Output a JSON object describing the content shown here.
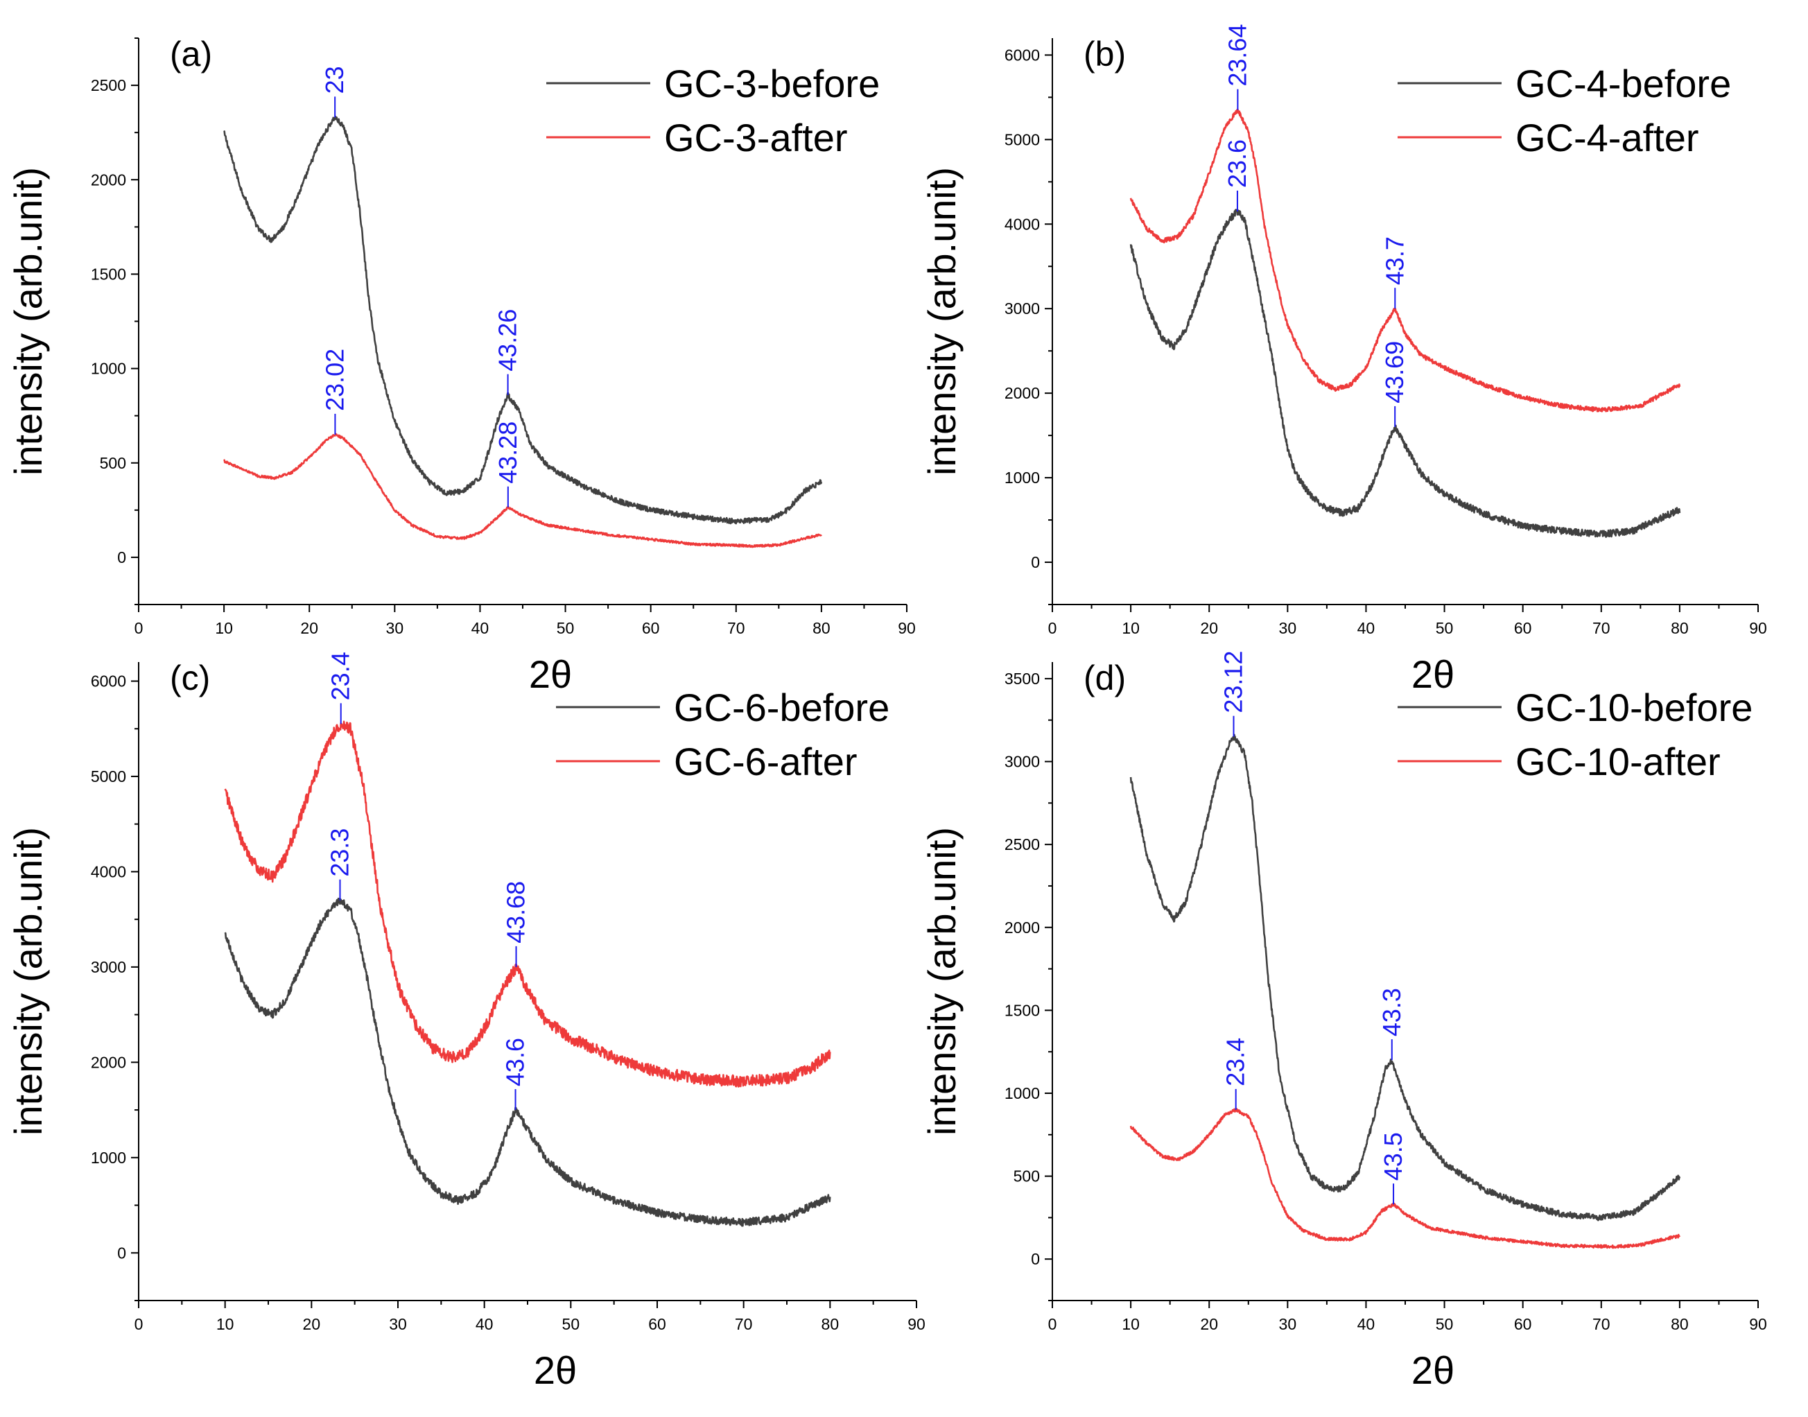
{
  "figure": {
    "line_colors": {
      "before": "#404040",
      "after": "#ee3a3a"
    },
    "annotation_color": "#1a1aee"
  },
  "chart_data": [
    {
      "type": "line",
      "panel_label": "(a)",
      "xlabel": "2θ",
      "ylabel": "intensity (arb.unit)",
      "xlim": [
        0,
        90
      ],
      "ylim": [
        -250,
        2750
      ],
      "xticks": [
        0,
        10,
        20,
        30,
        40,
        50,
        60,
        70,
        80,
        90
      ],
      "yticks": [
        0,
        500,
        1000,
        1500,
        2000,
        2500
      ],
      "legend": {
        "position": "top-right"
      },
      "series": [
        {
          "name": "GC-3-before",
          "color": "#404040",
          "noise": 14,
          "x": [
            10,
            12,
            14,
            15.5,
            17,
            19,
            21,
            22.5,
            23,
            24,
            25,
            26,
            27,
            28,
            30,
            32,
            34,
            36,
            38,
            40,
            41,
            42,
            43.26,
            44.5,
            46,
            48,
            52,
            56,
            60,
            65,
            70,
            74,
            76,
            78,
            80
          ],
          "y": [
            2250,
            1950,
            1740,
            1680,
            1750,
            1950,
            2180,
            2300,
            2330,
            2280,
            2150,
            1800,
            1350,
            1050,
            720,
            520,
            400,
            340,
            350,
            420,
            560,
            720,
            860,
            780,
            590,
            480,
            380,
            300,
            250,
            215,
            190,
            200,
            250,
            350,
            400
          ]
        },
        {
          "name": "GC-3-after",
          "color": "#ee3a3a",
          "noise": 6,
          "x": [
            10,
            12,
            14,
            16,
            18,
            20,
            22,
            23.02,
            24,
            26,
            28,
            30,
            32,
            35,
            38,
            40,
            42,
            43.28,
            45,
            48,
            55,
            65,
            72,
            75,
            78,
            80
          ],
          "y": [
            510,
            470,
            430,
            420,
            450,
            530,
            620,
            650,
            630,
            540,
            390,
            250,
            170,
            110,
            100,
            130,
            210,
            265,
            220,
            170,
            120,
            70,
            60,
            65,
            100,
            120
          ]
        }
      ],
      "annotations": [
        {
          "series": 0,
          "x": 23,
          "y": 2330,
          "text": "23"
        },
        {
          "series": 0,
          "x": 43.26,
          "y": 860,
          "text": "43.26"
        },
        {
          "series": 1,
          "x": 23.02,
          "y": 650,
          "text": "23.02"
        },
        {
          "series": 1,
          "x": 43.28,
          "y": 265,
          "text": "43.28"
        }
      ]
    },
    {
      "type": "line",
      "panel_label": "(b)",
      "xlabel": "2θ",
      "ylabel": "intensity (arb.unit)",
      "xlim": [
        0,
        90
      ],
      "ylim": [
        -500,
        6200
      ],
      "xticks": [
        0,
        10,
        20,
        30,
        40,
        50,
        60,
        70,
        80,
        90
      ],
      "yticks": [
        0,
        1000,
        2000,
        3000,
        4000,
        5000,
        6000
      ],
      "legend": {
        "position": "top-right"
      },
      "series": [
        {
          "name": "GC-4-before",
          "color": "#404040",
          "noise": 40,
          "x": [
            10,
            12,
            14,
            15.5,
            17,
            19,
            21,
            22.5,
            23.6,
            24.5,
            26,
            27,
            28,
            29,
            30,
            31,
            33,
            35,
            37,
            39,
            41,
            42.5,
            43.69,
            45,
            47,
            50,
            55,
            60,
            65,
            70,
            74,
            77,
            80
          ],
          "y": [
            3750,
            3050,
            2650,
            2550,
            2750,
            3250,
            3800,
            4050,
            4150,
            4050,
            3400,
            2900,
            2450,
            1850,
            1350,
            1050,
            780,
            640,
            580,
            640,
            950,
            1350,
            1600,
            1380,
            1050,
            800,
            570,
            430,
            370,
            330,
            370,
            500,
            620
          ]
        },
        {
          "name": "GC-4-after",
          "color": "#ee3a3a",
          "noise": 25,
          "x": [
            10,
            12,
            14,
            16,
            18,
            20,
            22,
            23.64,
            25,
            26,
            27,
            28,
            29,
            30,
            32,
            34,
            36,
            38,
            40,
            42,
            43.7,
            45,
            47,
            50,
            55,
            60,
            65,
            70,
            75,
            78,
            80
          ],
          "y": [
            4300,
            3950,
            3800,
            3850,
            4100,
            4600,
            5150,
            5350,
            5100,
            4650,
            4000,
            3550,
            3150,
            2800,
            2400,
            2150,
            2050,
            2100,
            2300,
            2750,
            3000,
            2700,
            2450,
            2300,
            2100,
            1950,
            1850,
            1800,
            1850,
            2000,
            2100
          ]
        }
      ],
      "annotations": [
        {
          "series": 1,
          "x": 23.64,
          "y": 5350,
          "text": "23.64"
        },
        {
          "series": 0,
          "x": 23.6,
          "y": 4150,
          "text": "23.6"
        },
        {
          "series": 1,
          "x": 43.7,
          "y": 3000,
          "text": "43.7"
        },
        {
          "series": 0,
          "x": 43.69,
          "y": 1600,
          "text": "43.69"
        }
      ]
    },
    {
      "type": "line",
      "panel_label": "(c)",
      "xlabel": "2θ",
      "ylabel": "intensity (arb.unit)",
      "xlim": [
        0,
        90
      ],
      "ylim": [
        -500,
        6200
      ],
      "xticks": [
        0,
        10,
        20,
        30,
        40,
        50,
        60,
        70,
        80,
        90
      ],
      "yticks": [
        0,
        1000,
        2000,
        3000,
        4000,
        5000,
        6000
      ],
      "legend": {
        "position": "top-right"
      },
      "series": [
        {
          "name": "GC-6-before",
          "color": "#404040",
          "noise": 40,
          "x": [
            10,
            12,
            14,
            15.5,
            17,
            19,
            21,
            22.5,
            23.3,
            24.5,
            25.5,
            26.5,
            27.5,
            29,
            31,
            33,
            35,
            37,
            39,
            41,
            42.5,
            43.6,
            45,
            47,
            50,
            55,
            60,
            65,
            70,
            75,
            78,
            80
          ],
          "y": [
            3350,
            2850,
            2550,
            2500,
            2650,
            3050,
            3450,
            3650,
            3700,
            3600,
            3300,
            2850,
            2350,
            1700,
            1100,
            800,
            620,
            550,
            620,
            850,
            1250,
            1500,
            1300,
            1000,
            750,
            550,
            420,
            350,
            320,
            370,
            500,
            580
          ]
        },
        {
          "name": "GC-6-after",
          "color": "#ee3a3a",
          "noise": 60,
          "x": [
            10,
            12,
            14,
            15.5,
            17,
            19,
            21,
            22.5,
            23.4,
            24.5,
            26,
            27,
            28,
            30,
            32,
            34,
            36,
            38,
            40,
            42,
            43.68,
            45,
            47,
            50,
            55,
            60,
            65,
            70,
            75,
            78,
            80
          ],
          "y": [
            4850,
            4300,
            4000,
            3950,
            4150,
            4650,
            5150,
            5450,
            5550,
            5500,
            4900,
            4250,
            3600,
            2800,
            2400,
            2150,
            2050,
            2100,
            2350,
            2750,
            3000,
            2750,
            2450,
            2250,
            2050,
            1900,
            1820,
            1800,
            1830,
            1950,
            2100
          ]
        }
      ],
      "annotations": [
        {
          "series": 1,
          "x": 23.4,
          "y": 5550,
          "text": "23.4"
        },
        {
          "series": 0,
          "x": 23.3,
          "y": 3700,
          "text": "23.3"
        },
        {
          "series": 1,
          "x": 43.68,
          "y": 3000,
          "text": "43.68"
        },
        {
          "series": 0,
          "x": 43.6,
          "y": 1500,
          "text": "43.6"
        }
      ]
    },
    {
      "type": "line",
      "panel_label": "(d)",
      "xlabel": "2θ",
      "ylabel": "intensity (arb.unit)",
      "xlim": [
        0,
        90
      ],
      "ylim": [
        -250,
        3600
      ],
      "xticks": [
        0,
        10,
        20,
        30,
        40,
        50,
        60,
        70,
        80,
        90
      ],
      "yticks": [
        0,
        500,
        1000,
        1500,
        2000,
        2500,
        3000,
        3500
      ],
      "legend": {
        "position": "top-right"
      },
      "series": [
        {
          "name": "GC-10-before",
          "color": "#404040",
          "noise": 18,
          "x": [
            10,
            12,
            14,
            15.5,
            17,
            19,
            21,
            22.5,
            23.12,
            24.5,
            25.5,
            26.5,
            27.5,
            29,
            31,
            33,
            35,
            37,
            39,
            41,
            42.5,
            43.3,
            45,
            47,
            50,
            55,
            60,
            65,
            70,
            74,
            77,
            80
          ],
          "y": [
            2900,
            2450,
            2150,
            2050,
            2150,
            2500,
            2900,
            3100,
            3150,
            3050,
            2750,
            2250,
            1700,
            1100,
            700,
            500,
            430,
            420,
            520,
            850,
            1150,
            1200,
            950,
            750,
            580,
            420,
            330,
            270,
            250,
            280,
            380,
            500
          ]
        },
        {
          "name": "GC-10-after",
          "color": "#ee3a3a",
          "noise": 9,
          "x": [
            10,
            12,
            14,
            16,
            18,
            20,
            22,
            23.4,
            25,
            26,
            27,
            28,
            30,
            32,
            35,
            38,
            40,
            42,
            43.5,
            45,
            48,
            55,
            65,
            72,
            75,
            78,
            80
          ],
          "y": [
            800,
            700,
            620,
            600,
            650,
            750,
            870,
            900,
            860,
            760,
            620,
            460,
            260,
            170,
            120,
            120,
            160,
            290,
            330,
            270,
            190,
            130,
            80,
            75,
            85,
            120,
            140
          ]
        }
      ],
      "annotations": [
        {
          "series": 0,
          "x": 23.12,
          "y": 3150,
          "text": "23.12"
        },
        {
          "series": 1,
          "x": 23.4,
          "y": 900,
          "text": "23.4"
        },
        {
          "series": 0,
          "x": 43.3,
          "y": 1200,
          "text": "43.3"
        },
        {
          "series": 1,
          "x": 43.5,
          "y": 330,
          "text": "43.5"
        }
      ]
    }
  ]
}
